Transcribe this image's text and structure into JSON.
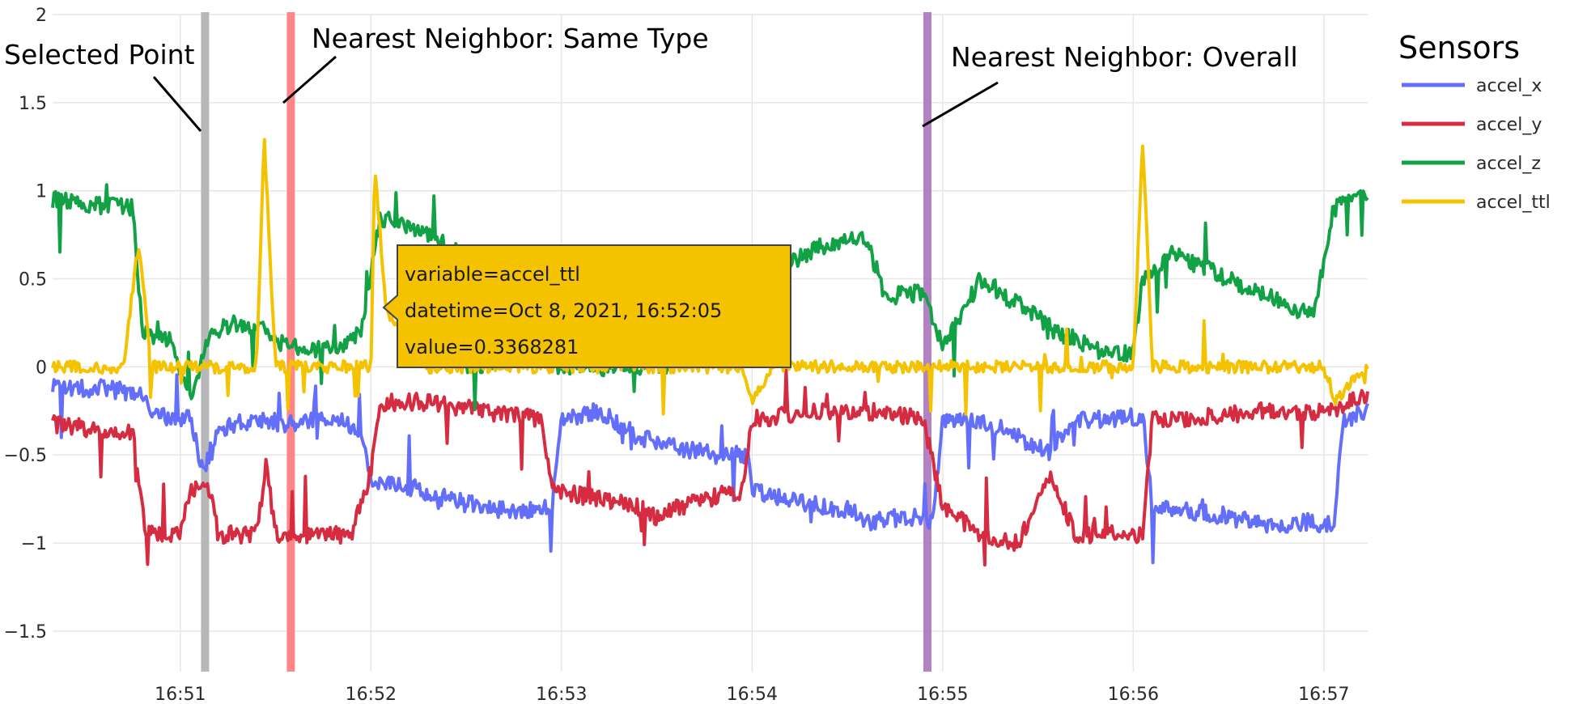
{
  "chart_data": {
    "type": "line",
    "x_ticks": [
      "16:51",
      "16:52",
      "16:53",
      "16:54",
      "16:55",
      "16:56",
      "16:57"
    ],
    "x_range_minutes": [
      50.33,
      57.23
    ],
    "y_ticks": [
      "2",
      "1.5",
      "1",
      "0.5",
      "0",
      "−0.5",
      "−1",
      "−1.5"
    ],
    "ylim": [
      -1.73,
      2.0
    ],
    "grid": true,
    "legend": {
      "title": "Sensors",
      "placement": "right"
    },
    "series": [
      {
        "name": "accel_x",
        "color": "#636efa",
        "points": [
          [
            50.33,
            -0.12
          ],
          [
            50.6,
            -0.12
          ],
          [
            50.78,
            -0.15
          ],
          [
            50.85,
            -0.25
          ],
          [
            50.95,
            -0.3
          ],
          [
            51.05,
            -0.28
          ],
          [
            51.12,
            -0.6
          ],
          [
            51.2,
            -0.35
          ],
          [
            51.4,
            -0.3
          ],
          [
            51.55,
            -0.32
          ],
          [
            51.8,
            -0.3
          ],
          [
            51.95,
            -0.35
          ],
          [
            52.0,
            -0.65
          ],
          [
            52.2,
            -0.68
          ],
          [
            52.4,
            -0.75
          ],
          [
            52.6,
            -0.8
          ],
          [
            52.8,
            -0.82
          ],
          [
            52.95,
            -0.8
          ],
          [
            53.0,
            -0.3
          ],
          [
            53.2,
            -0.25
          ],
          [
            53.4,
            -0.4
          ],
          [
            53.6,
            -0.45
          ],
          [
            53.8,
            -0.5
          ],
          [
            53.98,
            -0.5
          ],
          [
            54.0,
            -0.7
          ],
          [
            54.2,
            -0.75
          ],
          [
            54.4,
            -0.8
          ],
          [
            54.55,
            -0.82
          ],
          [
            54.6,
            -0.88
          ],
          [
            54.8,
            -0.85
          ],
          [
            54.95,
            -0.87
          ],
          [
            55.0,
            -0.3
          ],
          [
            55.2,
            -0.3
          ],
          [
            55.4,
            -0.4
          ],
          [
            55.55,
            -0.48
          ],
          [
            55.7,
            -0.3
          ],
          [
            55.9,
            -0.3
          ],
          [
            56.05,
            -0.28
          ],
          [
            56.1,
            -0.8
          ],
          [
            56.3,
            -0.82
          ],
          [
            56.5,
            -0.85
          ],
          [
            56.7,
            -0.9
          ],
          [
            56.9,
            -0.88
          ],
          [
            57.05,
            -0.9
          ],
          [
            57.1,
            -0.3
          ],
          [
            57.23,
            -0.25
          ]
        ]
      },
      {
        "name": "accel_y",
        "color": "#d62c42",
        "points": [
          [
            50.33,
            -0.32
          ],
          [
            50.5,
            -0.35
          ],
          [
            50.75,
            -0.38
          ],
          [
            50.82,
            -0.95
          ],
          [
            51.0,
            -0.95
          ],
          [
            51.05,
            -0.7
          ],
          [
            51.15,
            -0.7
          ],
          [
            51.2,
            -0.95
          ],
          [
            51.4,
            -0.95
          ],
          [
            51.45,
            -0.55
          ],
          [
            51.5,
            -0.95
          ],
          [
            51.7,
            -0.95
          ],
          [
            51.9,
            -0.95
          ],
          [
            52.0,
            -0.6
          ],
          [
            52.05,
            -0.2
          ],
          [
            52.3,
            -0.2
          ],
          [
            52.6,
            -0.25
          ],
          [
            52.9,
            -0.3
          ],
          [
            52.95,
            -0.7
          ],
          [
            53.2,
            -0.75
          ],
          [
            53.4,
            -0.8
          ],
          [
            53.5,
            -0.85
          ],
          [
            53.6,
            -0.8
          ],
          [
            53.75,
            -0.75
          ],
          [
            53.95,
            -0.7
          ],
          [
            54.0,
            -0.3
          ],
          [
            54.3,
            -0.25
          ],
          [
            54.6,
            -0.25
          ],
          [
            54.9,
            -0.3
          ],
          [
            55.0,
            -0.8
          ],
          [
            55.2,
            -0.95
          ],
          [
            55.4,
            -1.0
          ],
          [
            55.55,
            -0.6
          ],
          [
            55.7,
            -0.95
          ],
          [
            55.9,
            -0.95
          ],
          [
            56.05,
            -0.95
          ],
          [
            56.1,
            -0.3
          ],
          [
            56.4,
            -0.28
          ],
          [
            56.7,
            -0.25
          ],
          [
            57.0,
            -0.25
          ],
          [
            57.1,
            -0.22
          ],
          [
            57.23,
            -0.15
          ]
        ]
      },
      {
        "name": "accel_z",
        "color": "#12a245",
        "points": [
          [
            50.33,
            0.95
          ],
          [
            50.5,
            0.92
          ],
          [
            50.75,
            0.9
          ],
          [
            50.8,
            0.2
          ],
          [
            50.95,
            0.15
          ],
          [
            51.05,
            -0.2
          ],
          [
            51.15,
            0.2
          ],
          [
            51.3,
            0.25
          ],
          [
            51.45,
            0.2
          ],
          [
            51.55,
            0.12
          ],
          [
            51.7,
            0.1
          ],
          [
            51.85,
            0.12
          ],
          [
            51.95,
            0.2
          ],
          [
            52.05,
            0.85
          ],
          [
            52.2,
            0.78
          ],
          [
            52.35,
            0.72
          ],
          [
            52.45,
            0.65
          ],
          [
            52.5,
            0.0
          ],
          [
            52.9,
            0.05
          ],
          [
            53.0,
            0.0
          ],
          [
            53.5,
            0.0
          ],
          [
            53.95,
            0.1
          ],
          [
            54.05,
            0.55
          ],
          [
            54.2,
            0.6
          ],
          [
            54.4,
            0.7
          ],
          [
            54.6,
            0.72
          ],
          [
            54.7,
            0.4
          ],
          [
            54.9,
            0.42
          ],
          [
            55.0,
            0.1
          ],
          [
            55.2,
            0.5
          ],
          [
            55.4,
            0.35
          ],
          [
            55.6,
            0.2
          ],
          [
            55.8,
            0.1
          ],
          [
            56.0,
            0.08
          ],
          [
            56.05,
            0.5
          ],
          [
            56.2,
            0.65
          ],
          [
            56.4,
            0.55
          ],
          [
            56.6,
            0.45
          ],
          [
            56.8,
            0.35
          ],
          [
            56.95,
            0.3
          ],
          [
            57.05,
            0.9
          ],
          [
            57.15,
            0.95
          ],
          [
            57.23,
            0.95
          ]
        ]
      },
      {
        "name": "accel_ttl",
        "color": "#f5c200",
        "points": [
          [
            50.33,
            0.0
          ],
          [
            50.7,
            0.0
          ],
          [
            50.78,
            0.7
          ],
          [
            50.85,
            0.0
          ],
          [
            51.4,
            0.0
          ],
          [
            51.44,
            1.3
          ],
          [
            51.5,
            0.0
          ],
          [
            52.0,
            0.0
          ],
          [
            52.02,
            1.15
          ],
          [
            52.08,
            0.33
          ],
          [
            52.3,
            0.0
          ],
          [
            53.95,
            0.0
          ],
          [
            54.0,
            -0.2
          ],
          [
            54.1,
            0.0
          ],
          [
            56.0,
            0.0
          ],
          [
            56.05,
            1.3
          ],
          [
            56.1,
            0.0
          ],
          [
            57.0,
            0.0
          ],
          [
            57.05,
            -0.2
          ],
          [
            57.23,
            0.0
          ]
        ]
      }
    ],
    "highlight_bands": [
      {
        "label": "Selected Point",
        "x": 51.13,
        "color": "#b3b3b3"
      },
      {
        "label": "Nearest Neighbor: Same Type",
        "x": 51.58,
        "color": "#ff7f7f"
      },
      {
        "label": "Nearest Neighbor: Overall",
        "x": 54.92,
        "color": "#b07bc0"
      }
    ],
    "annotations": [
      "Selected Point",
      "Nearest Neighbor: Same Type",
      "Nearest Neighbor: Overall"
    ],
    "tooltip": {
      "lines": [
        "variable=accel_ttl",
        "datetime=Oct 8, 2021, 16:52:05",
        "value=0.3368281"
      ],
      "color": "#f5c200",
      "x": 52.08,
      "y": 0.3368281
    }
  }
}
